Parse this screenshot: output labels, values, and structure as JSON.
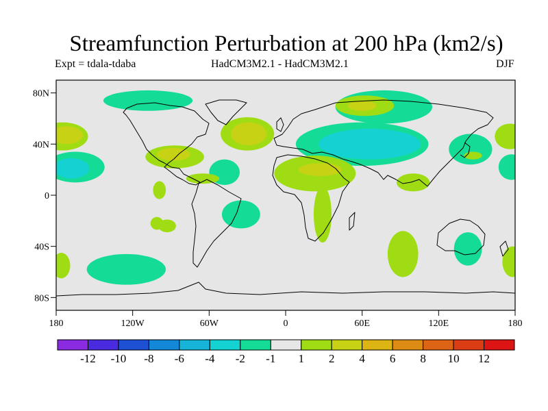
{
  "title": "Streamfunction Perturbation at 200 hPa (km2/s)",
  "subtitle_left": "Expt = tdala-tdaba",
  "subtitle_center": "HadCM3M2.1 - HadCM3M2.1",
  "subtitle_right": "DJF",
  "map": {
    "projection": "cylindrical equidistant",
    "lon_range": [
      -180,
      180
    ],
    "lat_range": [
      -90,
      90
    ],
    "background_color": "#e6e6e6",
    "lat_ticks": [
      {
        "lat": 80,
        "label": "80N"
      },
      {
        "lat": 40,
        "label": "40N"
      },
      {
        "lat": 0,
        "label": "0"
      },
      {
        "lat": -40,
        "label": "40S"
      },
      {
        "lat": -80,
        "label": "80S"
      }
    ],
    "lon_ticks": [
      {
        "lon": -180,
        "label": "180"
      },
      {
        "lon": -120,
        "label": "120W"
      },
      {
        "lon": -60,
        "label": "60W"
      },
      {
        "lon": 0,
        "label": "0"
      },
      {
        "lon": 60,
        "label": "60E"
      },
      {
        "lon": 120,
        "label": "120E"
      },
      {
        "lon": 180,
        "label": "180"
      }
    ]
  },
  "colorbar": {
    "colors": [
      "#8a2be2",
      "#4b2be0",
      "#1e50d4",
      "#1488d8",
      "#16b4d8",
      "#14d2d2",
      "#14dc96",
      "#e6e6e6",
      "#a0dc14",
      "#c8d214",
      "#dcb414",
      "#dc8c14",
      "#dc6414",
      "#dc3c14",
      "#dc1414"
    ],
    "labels": [
      "-12",
      "-10",
      "-8",
      "-6",
      "-4",
      "-2",
      "-1",
      "1",
      "2",
      "4",
      "6",
      "8",
      "10",
      "12"
    ]
  },
  "anomalies": [
    {
      "name": "north-pacific-positive",
      "value": 2,
      "color": "#a0dc14",
      "lon": -175,
      "lat": 46,
      "rlon": 20,
      "rlat": 11
    },
    {
      "name": "north-pacific-positive-core",
      "value": 4,
      "color": "#c8d214",
      "lon": -172,
      "lat": 47,
      "rlon": 13,
      "rlat": 7
    },
    {
      "name": "alaska-canada-negative",
      "value": -1,
      "color": "#14dc96",
      "lon": -108,
      "lat": 74,
      "rlon": 35,
      "rlat": 8
    },
    {
      "name": "subtropical-pacific-negative",
      "value": -1,
      "color": "#14dc96",
      "lon": -165,
      "lat": 22,
      "rlon": 23,
      "rlat": 12
    },
    {
      "name": "subtropical-pacific-negative-core",
      "value": -2,
      "color": "#14d2d2",
      "lon": -168,
      "lat": 21,
      "rlon": 14,
      "rlat": 8
    },
    {
      "name": "north-atlantic-positive",
      "value": 2,
      "color": "#a0dc14",
      "lon": -30,
      "lat": 48,
      "rlon": 21,
      "rlat": 13
    },
    {
      "name": "north-atlantic-positive-core",
      "value": 4,
      "color": "#c8d214",
      "lon": -29,
      "lat": 48,
      "rlon": 14,
      "rlat": 9
    },
    {
      "name": "gulf-of-mexico-positive",
      "value": 2,
      "color": "#a0dc14",
      "lon": -87,
      "lat": 30,
      "rlon": 23,
      "rlat": 9
    },
    {
      "name": "gulf-of-mexico-positive-core",
      "value": 4,
      "color": "#c8d214",
      "lon": -88,
      "lat": 32,
      "rlon": 13,
      "rlat": 5
    },
    {
      "name": "tropical-atlantic-negative",
      "value": -1,
      "color": "#14dc96",
      "lon": -48,
      "lat": 18,
      "rlon": 12,
      "rlat": 10
    },
    {
      "name": "amazon-positive",
      "value": 2,
      "color": "#a0dc14",
      "lon": -65,
      "lat": 13,
      "rlon": 13,
      "rlat": 4
    },
    {
      "name": "east-pacific-positive",
      "value": 2,
      "color": "#a0dc14",
      "lon": -99,
      "lat": 4,
      "rlon": 5,
      "rlat": 7
    },
    {
      "name": "south-east-pacific-positive",
      "value": 2,
      "color": "#a0dc14",
      "lon": -101,
      "lat": -22,
      "rlon": 5,
      "rlat": 5
    },
    {
      "name": "south-atlantic-negative",
      "value": -1,
      "color": "#14dc96",
      "lon": -35,
      "lat": -15,
      "rlon": 15,
      "rlat": 11
    },
    {
      "name": "siberia-negative",
      "value": -1,
      "color": "#14dc96",
      "lon": 77,
      "lat": 69,
      "rlon": 38,
      "rlat": 13
    },
    {
      "name": "siberia-positive",
      "value": 2,
      "color": "#a0dc14",
      "lon": 62,
      "lat": 70,
      "rlon": 23,
      "rlat": 8
    },
    {
      "name": "siberia-positive-core",
      "value": 4,
      "color": "#c8d214",
      "lon": 60,
      "lat": 70,
      "rlon": 11,
      "rlat": 4
    },
    {
      "name": "central-asia-negative",
      "value": -1,
      "color": "#14dc96",
      "lon": 60,
      "lat": 40,
      "rlon": 52,
      "rlat": 17
    },
    {
      "name": "central-asia-negative-core",
      "value": -2,
      "color": "#14d2d2",
      "lon": 66,
      "lat": 40,
      "rlon": 40,
      "rlat": 12
    },
    {
      "name": "north-africa-positive",
      "value": 2,
      "color": "#a0dc14",
      "lon": 23,
      "lat": 17,
      "rlon": 32,
      "rlat": 14
    },
    {
      "name": "north-africa-positive-core",
      "value": 4,
      "color": "#c8d214",
      "lon": 27,
      "lat": 20,
      "rlon": 17,
      "rlat": 5
    },
    {
      "name": "southern-africa-positive",
      "value": 2,
      "color": "#a0dc14",
      "lon": 29,
      "lat": -15,
      "rlon": 7,
      "rlat": 22
    },
    {
      "name": "indian-ocean-positive",
      "value": 2,
      "color": "#a0dc14",
      "lon": 92,
      "lat": -46,
      "rlon": 12,
      "rlat": 18
    },
    {
      "name": "southeast-asia-positive",
      "value": 2,
      "color": "#a0dc14",
      "lon": 100,
      "lat": 10,
      "rlon": 13,
      "rlat": 7
    },
    {
      "name": "japan-negative",
      "value": -1,
      "color": "#14dc96",
      "lon": 145,
      "lat": 36,
      "rlon": 17,
      "rlat": 12
    },
    {
      "name": "japan-positive",
      "value": 2,
      "color": "#a0dc14",
      "lon": 147,
      "lat": 31,
      "rlon": 7,
      "rlat": 3
    },
    {
      "name": "eastern-australia-negative",
      "value": -1,
      "color": "#14dc96",
      "lon": 143,
      "lat": -42,
      "rlon": 11,
      "rlat": 13
    },
    {
      "name": "north-pacific-east-positive",
      "value": 2,
      "color": "#a0dc14",
      "lon": 176,
      "lat": 46,
      "rlon": 12,
      "rlat": 10
    },
    {
      "name": "dateline-negative",
      "value": -1,
      "color": "#14dc96",
      "lon": 177,
      "lat": 22,
      "rlon": 10,
      "rlat": 10
    },
    {
      "name": "dateline-positive-south",
      "value": 2,
      "color": "#a0dc14",
      "lon": 178,
      "lat": -52,
      "rlon": 8,
      "rlat": 12
    },
    {
      "name": "southwest-pacific-positive",
      "value": 2,
      "color": "#a0dc14",
      "lon": -176,
      "lat": -55,
      "rlon": 7,
      "rlat": 10
    },
    {
      "name": "southern-ocean-negative",
      "value": -1,
      "color": "#14dc96",
      "lon": -125,
      "lat": -58,
      "rlon": 31,
      "rlat": 12
    },
    {
      "name": "atlantic-south-positive",
      "value": 2,
      "color": "#a0dc14",
      "lon": -93,
      "lat": -24,
      "rlon": 7,
      "rlat": 5
    }
  ]
}
